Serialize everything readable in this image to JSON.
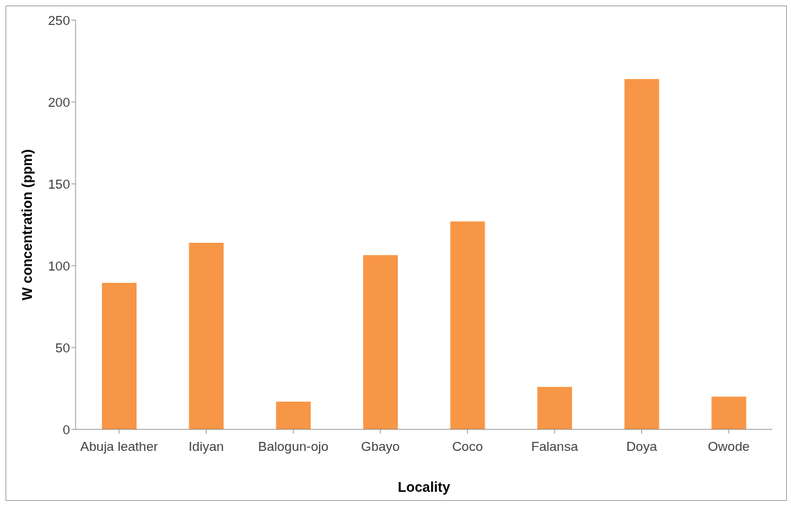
{
  "chart_data": {
    "type": "bar",
    "xlabel": "Locality",
    "ylabel": "W  concentration (ppm)",
    "categories": [
      "Abuja leather",
      "Idiyan",
      "Balogun-ojo",
      "Gbayo",
      "Coco",
      "Falansa",
      "Doya",
      "Owode"
    ],
    "values": [
      89.5,
      114,
      17,
      106.5,
      127,
      26,
      214,
      20
    ],
    "color": "#f79646",
    "ylim": [
      0,
      250
    ],
    "yticks": [
      0,
      50,
      100,
      150,
      200,
      250
    ],
    "grid": false,
    "legend": false
  }
}
